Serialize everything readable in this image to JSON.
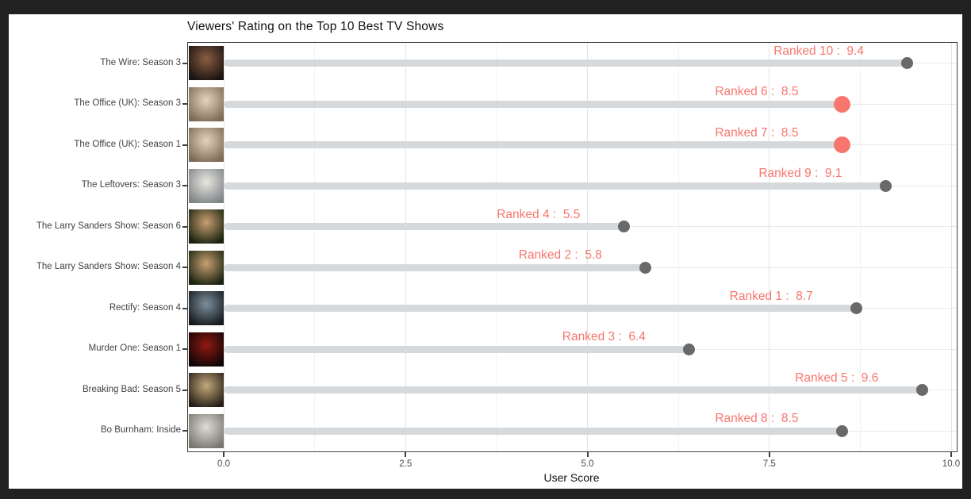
{
  "frame": {
    "background": "#212121",
    "canvas_background": "#ffffff"
  },
  "chart_data": {
    "type": "bar",
    "subtype": "horizontal-lollipop",
    "title": "Viewers' Rating on the Top 10 Best TV Shows",
    "xlabel": "User Score",
    "ylabel": "",
    "xlim": [
      0,
      10
    ],
    "grid": true,
    "legend": false,
    "x_ticks": [
      {
        "value": 0,
        "label": "0.0"
      },
      {
        "value": 2.5,
        "label": "2.5"
      },
      {
        "value": 5,
        "label": "5.0"
      },
      {
        "value": 7.5,
        "label": "7.5"
      },
      {
        "value": 10,
        "label": "10.0"
      }
    ],
    "x_minor_ticks": [
      1.25,
      3.75,
      6.25,
      8.75
    ],
    "colors": {
      "highlight_dot": "#f8766d",
      "default_dot": "#696969",
      "stem": "#d6d9dc",
      "annotation_text": "#f8766d",
      "axis_text": "#4d4d4d",
      "title_text": "#111111"
    },
    "categories": [
      "The Wire: Season 3",
      "The Office (UK): Season 3",
      "The Office (UK): Season 1",
      "The Leftovers: Season 3",
      "The Larry Sanders Show: Season 6",
      "The Larry Sanders Show: Season 4",
      "Rectify: Season 4",
      "Murder One: Season 1",
      "Breaking Bad: Season 5",
      "Bo Burnham: Inside"
    ],
    "values": [
      9.4,
      8.5,
      8.5,
      9.1,
      5.5,
      5.8,
      8.7,
      6.4,
      9.6,
      8.5
    ],
    "rows": [
      {
        "label": "The Wire: Season 3",
        "rank": 10,
        "score": 9.4,
        "annotation": "Ranked 10 :  9.4",
        "highlighted": false,
        "poster": {
          "name": "poster-the-wire-s3",
          "colors": [
            "#8a5d42",
            "#181210"
          ]
        }
      },
      {
        "label": "The Office (UK): Season 3",
        "rank": 6,
        "score": 8.5,
        "annotation": "Ranked 6 :  8.5",
        "highlighted": true,
        "poster": {
          "name": "poster-the-office-uk-s3",
          "colors": [
            "#e3d3bd",
            "#7d6a55"
          ]
        }
      },
      {
        "label": "The Office (UK): Season 1",
        "rank": 7,
        "score": 8.5,
        "annotation": "Ranked 7 :  8.5",
        "highlighted": true,
        "poster": {
          "name": "poster-the-office-uk-s1",
          "colors": [
            "#e3d3bd",
            "#7d6a55"
          ]
        }
      },
      {
        "label": "The Leftovers: Season 3",
        "rank": 9,
        "score": 9.1,
        "annotation": "Ranked 9 :  9.1",
        "highlighted": false,
        "poster": {
          "name": "poster-the-leftovers-s3",
          "colors": [
            "#e8e6df",
            "#7f8487"
          ]
        }
      },
      {
        "label": "The Larry Sanders Show: Season 6",
        "rank": 4,
        "score": 5.5,
        "annotation": "Ranked 4 :  5.5",
        "highlighted": false,
        "poster": {
          "name": "poster-larry-sanders-s6",
          "colors": [
            "#c99f72",
            "#17220f"
          ]
        }
      },
      {
        "label": "The Larry Sanders Show: Season 4",
        "rank": 2,
        "score": 5.8,
        "annotation": "Ranked 2 :  5.8",
        "highlighted": false,
        "poster": {
          "name": "poster-larry-sanders-s4",
          "colors": [
            "#c99f72",
            "#17220f"
          ]
        }
      },
      {
        "label": "Rectify: Season 4",
        "rank": 1,
        "score": 8.7,
        "annotation": "Ranked 1 :  8.7",
        "highlighted": false,
        "poster": {
          "name": "poster-rectify-s4",
          "colors": [
            "#7d8f9c",
            "#15191d"
          ]
        }
      },
      {
        "label": "Murder One: Season 1",
        "rank": 3,
        "score": 6.4,
        "annotation": "Ranked 3 :  6.4",
        "highlighted": false,
        "poster": {
          "name": "poster-murder-one-s1",
          "colors": [
            "#8f1a12",
            "#0d0405"
          ]
        }
      },
      {
        "label": "Breaking Bad: Season 5",
        "rank": 5,
        "score": 9.6,
        "annotation": "Ranked 5 :  9.6",
        "highlighted": false,
        "poster": {
          "name": "poster-breaking-bad-s5",
          "colors": [
            "#c3a87b",
            "#241e16"
          ]
        }
      },
      {
        "label": "Bo Burnham: Inside",
        "rank": 8,
        "score": 8.5,
        "annotation": "Ranked 8 :  8.5",
        "highlighted": false,
        "poster": {
          "name": "poster-bo-burnham-inside",
          "colors": [
            "#dddcd5",
            "#77766e"
          ]
        }
      }
    ]
  }
}
